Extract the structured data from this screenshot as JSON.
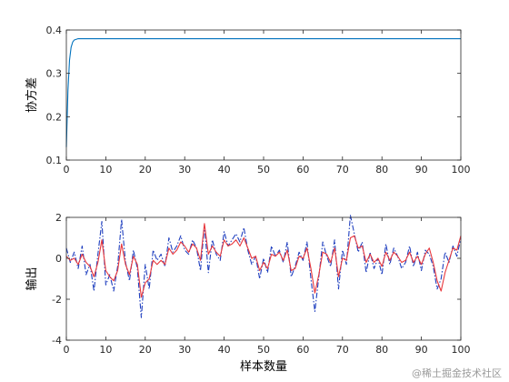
{
  "watermark": "@稀土掘金技术社区",
  "chart_data": [
    {
      "type": "line",
      "title": "",
      "xlabel": "",
      "ylabel": "协方差",
      "xlim": [
        0,
        100
      ],
      "ylim": [
        0.1,
        0.4
      ],
      "xticks": [
        "0",
        "10",
        "20",
        "30",
        "40",
        "50",
        "60",
        "70",
        "80",
        "90",
        "100"
      ],
      "yticks": [
        "0.1",
        "0.2",
        "0.3",
        "0.4"
      ],
      "grid": false,
      "series": [
        {
          "color": "#0072BD",
          "style": "solid",
          "x": [
            0,
            0.4,
            0.8,
            1.2,
            1.6,
            2,
            3,
            4,
            5,
            10,
            20,
            30,
            40,
            50,
            60,
            70,
            80,
            90,
            100
          ],
          "values": [
            0.13,
            0.26,
            0.33,
            0.36,
            0.372,
            0.377,
            0.38,
            0.38,
            0.38,
            0.38,
            0.38,
            0.38,
            0.38,
            0.38,
            0.38,
            0.38,
            0.38,
            0.38,
            0.38
          ]
        }
      ]
    },
    {
      "type": "line",
      "title": "",
      "xlabel": "样本数量",
      "ylabel": "输出",
      "xlim": [
        0,
        100
      ],
      "ylim": [
        -4,
        2
      ],
      "xticks": [
        "0",
        "10",
        "20",
        "30",
        "40",
        "50",
        "60",
        "70",
        "80",
        "90",
        "100"
      ],
      "yticks": [
        "-4",
        "-2",
        "0",
        "2"
      ],
      "grid": false,
      "series": [
        {
          "color": "#1f3fbf",
          "style": "dashdot",
          "x": [
            0,
            1,
            2,
            3,
            4,
            5,
            6,
            7,
            8,
            9,
            10,
            11,
            12,
            13,
            14,
            15,
            16,
            17,
            18,
            19,
            20,
            21,
            22,
            23,
            24,
            25,
            26,
            27,
            28,
            29,
            30,
            31,
            32,
            33,
            34,
            35,
            36,
            37,
            38,
            39,
            40,
            41,
            42,
            43,
            44,
            45,
            46,
            47,
            48,
            49,
            50,
            51,
            52,
            53,
            54,
            55,
            56,
            57,
            58,
            59,
            60,
            61,
            62,
            63,
            64,
            65,
            66,
            67,
            68,
            69,
            70,
            71,
            72,
            73,
            74,
            75,
            76,
            77,
            78,
            79,
            80,
            81,
            82,
            83,
            84,
            85,
            86,
            87,
            88,
            89,
            90,
            91,
            92,
            93,
            94,
            95,
            96,
            97,
            98,
            99,
            100
          ],
          "values": [
            0.5,
            -0.2,
            0.3,
            -0.5,
            0.6,
            -0.8,
            -0.3,
            -1.6,
            0.2,
            1.8,
            -1.3,
            -0.8,
            -1.6,
            -0.4,
            1.9,
            -0.2,
            -1.1,
            0.4,
            -0.5,
            -2.9,
            -0.3,
            -1.5,
            0.4,
            -0.1,
            0.2,
            -0.4,
            1.0,
            0.3,
            0.6,
            1.1,
            0.4,
            0.2,
            0.9,
            0.5,
            -0.6,
            1.6,
            -0.7,
            0.9,
            0.2,
            -0.1,
            1.3,
            0.6,
            0.9,
            1.2,
            0.8,
            1.5,
            0.4,
            -0.3,
            0.1,
            -1.0,
            0.0,
            -0.7,
            0.6,
            0.1,
            0.4,
            -0.2,
            0.8,
            -0.9,
            -0.4,
            0.3,
            -0.1,
            0.8,
            -1.0,
            -2.6,
            -0.9,
            0.8,
            0.1,
            -0.4,
            0.9,
            -1.5,
            0.4,
            -0.3,
            2.1,
            1.2,
            0.3,
            0.8,
            -0.7,
            0.3,
            -0.5,
            0.0,
            -0.8,
            0.7,
            -0.3,
            0.5,
            0.1,
            -0.5,
            -0.2,
            0.6,
            -0.4,
            0.3,
            -0.6,
            0.4,
            0.2,
            -0.4,
            -1.5,
            -1.0,
            0.3,
            -0.2,
            0.6,
            0.1,
            1.0
          ]
        },
        {
          "color": "#e8383d",
          "style": "solid",
          "x": [
            0,
            1,
            2,
            3,
            4,
            5,
            6,
            7,
            8,
            9,
            10,
            11,
            12,
            13,
            14,
            15,
            16,
            17,
            18,
            19,
            20,
            21,
            22,
            23,
            24,
            25,
            26,
            27,
            28,
            29,
            30,
            31,
            32,
            33,
            34,
            35,
            36,
            37,
            38,
            39,
            40,
            41,
            42,
            43,
            44,
            45,
            46,
            47,
            48,
            49,
            50,
            51,
            52,
            53,
            54,
            55,
            56,
            57,
            58,
            59,
            60,
            61,
            62,
            63,
            64,
            65,
            66,
            67,
            68,
            69,
            70,
            71,
            72,
            73,
            74,
            75,
            76,
            77,
            78,
            79,
            80,
            81,
            82,
            83,
            84,
            85,
            86,
            87,
            88,
            89,
            90,
            91,
            92,
            93,
            94,
            95,
            96,
            97,
            98,
            99,
            100
          ],
          "values": [
            0.1,
            -0.1,
            0.0,
            -0.3,
            0.2,
            -0.2,
            -0.4,
            -0.9,
            -0.2,
            0.9,
            -0.6,
            -0.9,
            -1.1,
            -0.6,
            0.7,
            -0.3,
            -0.8,
            0.1,
            -0.3,
            -1.9,
            -1.2,
            -1.0,
            -0.1,
            -0.3,
            -0.1,
            -0.3,
            0.5,
            0.2,
            0.4,
            0.8,
            0.6,
            0.3,
            0.7,
            0.5,
            -0.1,
            1.7,
            0.2,
            0.6,
            0.3,
            0.1,
            0.9,
            0.6,
            0.7,
            0.9,
            0.6,
            1.0,
            0.5,
            0.0,
            0.1,
            -0.6,
            -0.2,
            -0.5,
            0.2,
            0.1,
            0.3,
            -0.1,
            0.4,
            -0.6,
            -0.5,
            0.1,
            0.0,
            0.5,
            -0.5,
            -1.7,
            -0.8,
            0.3,
            0.2,
            -0.2,
            0.5,
            -0.9,
            0.0,
            -0.1,
            1.0,
            1.1,
            0.5,
            0.6,
            -0.2,
            0.2,
            -0.2,
            0.0,
            -0.4,
            0.3,
            -0.1,
            0.3,
            0.1,
            -0.2,
            -0.1,
            0.3,
            -0.2,
            0.1,
            -0.3,
            0.2,
            0.5,
            -0.2,
            -1.1,
            -1.6,
            -0.7,
            -0.1,
            0.5,
            0.4,
            1.1
          ]
        }
      ]
    }
  ]
}
